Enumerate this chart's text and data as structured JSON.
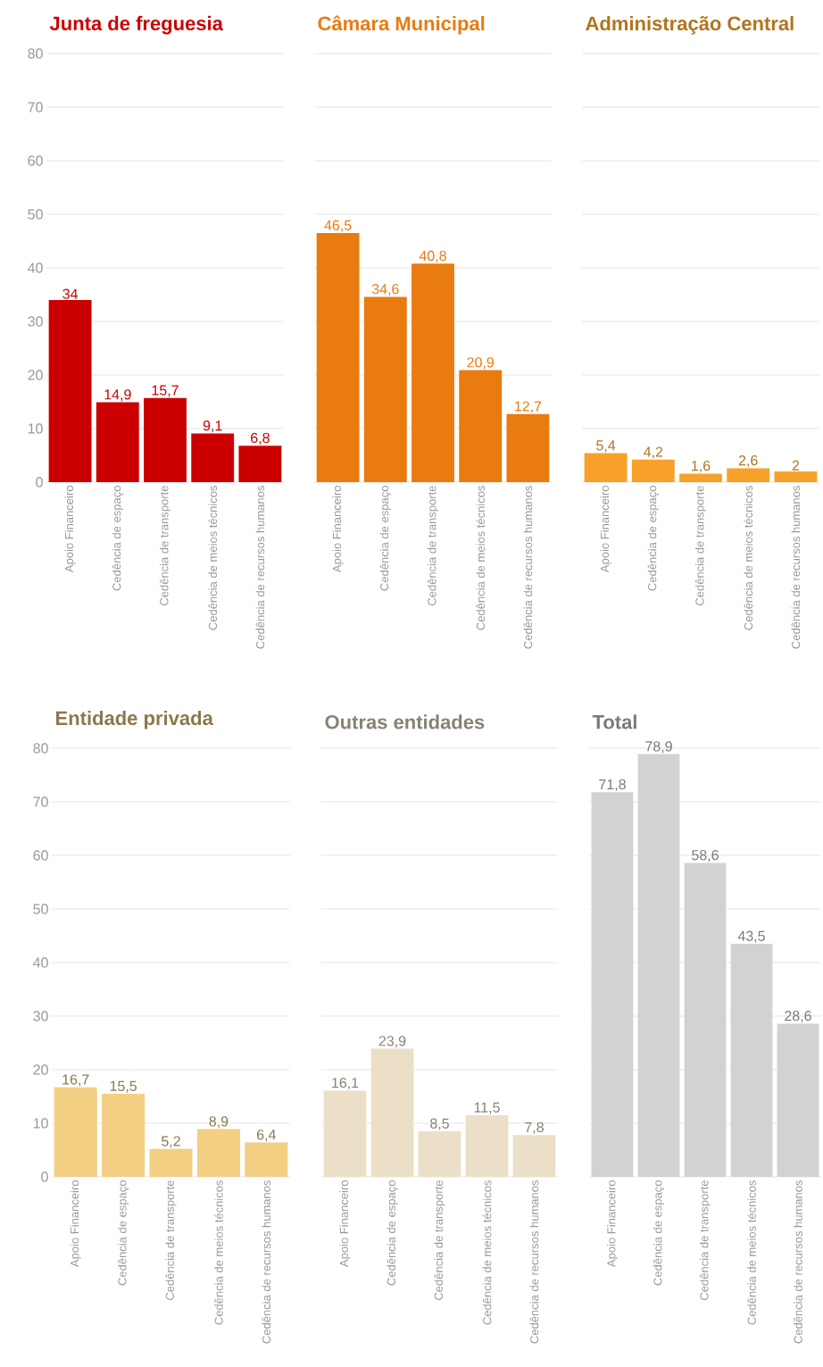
{
  "chart_data": [
    {
      "type": "bar",
      "title": "Junta de freguesia",
      "categories": [
        "Apoio Financeiro",
        "Cedência de espaço",
        "Cedência de transporte",
        "Cedência de meios técnicos",
        "Cedência de recursos humanos"
      ],
      "values": [
        34,
        14.9,
        15.7,
        9.1,
        6.8
      ],
      "value_labels": [
        "34",
        "14,9",
        "15,7",
        "9,1",
        "6,8"
      ],
      "color": "#cc0000",
      "ylim": [
        0,
        80
      ],
      "yticks": [
        0,
        10,
        20,
        30,
        40,
        50,
        60,
        70,
        80
      ],
      "grid": "y"
    },
    {
      "type": "bar",
      "title": "Câmara Municipal",
      "categories": [
        "Apoio Financeiro",
        "Cedência de espaço",
        "Cedência de transporte",
        "Cedência de meios técnicos",
        "Cedência de recursos humanos"
      ],
      "values": [
        46.5,
        34.6,
        40.8,
        20.9,
        12.7
      ],
      "value_labels": [
        "46,5",
        "34,6",
        "40,8",
        "20,9",
        "12,7"
      ],
      "color": "#e97b10",
      "ylim": [
        0,
        80
      ],
      "yticks": [
        0,
        10,
        20,
        30,
        40,
        50,
        60,
        70,
        80
      ],
      "grid": "y",
      "tick_labels": "x"
    },
    {
      "type": "bar",
      "title": "Administração Central",
      "categories": [
        "Apoio Financeiro",
        "Cedência de espaço",
        "Cedência de transporte",
        "Cedência de meios técnicos",
        "Cedência de recursos humanos"
      ],
      "values": [
        5.4,
        4.2,
        1.6,
        2.6,
        2
      ],
      "value_labels": [
        "5,4",
        "4,2",
        "1,6",
        "2,6",
        "2"
      ],
      "color": "#f7a12a",
      "ylim": [
        0,
        80
      ],
      "yticks": [
        0,
        10,
        20,
        30,
        40,
        50,
        60,
        70,
        80
      ],
      "grid": "y",
      "tick_labels": "x"
    },
    {
      "type": "bar",
      "title": "Entidade privada",
      "categories": [
        "Apoio Financeiro",
        "Cedência de espaço",
        "Cedência de transporte",
        "Cedência de meios técnicos",
        "Cedência de recursos humanos"
      ],
      "values": [
        16.7,
        15.5,
        5.2,
        8.9,
        6.4
      ],
      "value_labels": [
        "16,7",
        "15,5",
        "5,2",
        "8,9",
        "6,4"
      ],
      "color": "#f2cf82",
      "ylim": [
        0,
        80
      ],
      "yticks": [
        0,
        10,
        20,
        30,
        40,
        50,
        60,
        70,
        80
      ],
      "grid": "y"
    },
    {
      "type": "bar",
      "title": "Outras entidades",
      "categories": [
        "Apoio Financeiro",
        "Cedência de espaço",
        "Cedência de transporte",
        "Cedência de meios técnicos",
        "Cedência de recursos humanos"
      ],
      "values": [
        16.1,
        23.9,
        8.5,
        11.5,
        7.8
      ],
      "value_labels": [
        "16,1",
        "23,9",
        "8,5",
        "11,5",
        "7,8"
      ],
      "color": "#ebe0c7",
      "ylim": [
        0,
        80
      ],
      "yticks": [
        0,
        10,
        20,
        30,
        40,
        50,
        60,
        70,
        80
      ],
      "grid": "y",
      "tick_labels": "x"
    },
    {
      "type": "bar",
      "title": "Total",
      "categories": [
        "Apoio Financeiro",
        "Cedência de espaço",
        "Cedência de transporte",
        "Cedência de meios técnicos",
        "Cedência de recursos humanos"
      ],
      "values": [
        71.8,
        78.9,
        58.6,
        43.5,
        28.6
      ],
      "value_labels": [
        "71,8",
        "78,9",
        "58,6",
        "43,5",
        "28,6"
      ],
      "color": "#d3d2d1",
      "ylim": [
        0,
        80
      ],
      "yticks": [
        0,
        10,
        20,
        30,
        40,
        50,
        60,
        70,
        80
      ],
      "grid": "y",
      "tick_labels": "x"
    }
  ]
}
